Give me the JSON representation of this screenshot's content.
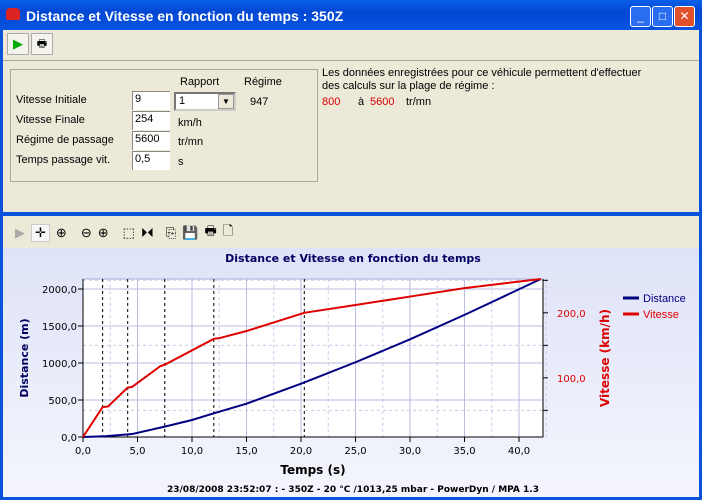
{
  "window": {
    "title": "Distance et Vitesse en fonction du temps : 350Z"
  },
  "toolbar": {
    "icons": [
      "play-icon",
      "print-icon"
    ]
  },
  "form": {
    "rapport_header": "Rapport",
    "regime_header": "Régime",
    "rows": [
      {
        "label": "Vitesse Initiale",
        "value": "9"
      },
      {
        "label": "Vitesse Finale",
        "value": "254",
        "unit": "km/h"
      },
      {
        "label": "Régime de passage",
        "value": "5600",
        "unit": "tr/mn"
      },
      {
        "label": "Temps passage vit.",
        "value": "0,5",
        "unit": "s"
      }
    ],
    "rapport_value": "1",
    "regime_value": "947"
  },
  "info": {
    "line1": "Les données enregistrées pour ce véhicule permettent d'effectuer",
    "line2": "des calculs sur la plage de régime :",
    "min": "800",
    "sep": "à",
    "max": "5600",
    "unit": "tr/mn",
    "accent": "#d40000"
  },
  "chart_toolbar": [
    "arrow-icon",
    "pan-icon",
    "zoom-area-icon",
    "zoom-out-icon",
    "zoom-in-icon",
    "select-rect-icon",
    "cursor-icon",
    "copy-icon",
    "save-icon",
    "print-icon",
    "print-preview-icon"
  ],
  "chart_data": {
    "type": "line",
    "title": "Distance et Vitesse en fonction du temps",
    "xlabel": "Temps (s)",
    "ylabel": "Distance (m)",
    "y2label": "Vitesse (km/h)",
    "xlim": [
      0,
      42.2
    ],
    "ylim": [
      0,
      2135
    ],
    "y2lim": [
      9,
      252
    ],
    "xticks": [
      "0,0",
      "5,0",
      "10,0",
      "15,0",
      "20,0",
      "25,0",
      "30,0",
      "35,0",
      "40,0"
    ],
    "yticks": [
      "0,0",
      "500,0",
      "1000,0",
      "1500,0",
      "2000,0"
    ],
    "y2ticks": [
      "100,0",
      "200,0"
    ],
    "gear_changes": [
      1.8,
      4.1,
      7.5,
      12.0,
      20.3
    ],
    "legend": "right",
    "series": [
      {
        "name": "Distance",
        "color": "#000080",
        "axis": "left",
        "x": [
          0,
          2,
          4.5,
          7.5,
          10,
          12,
          15,
          20,
          25,
          30,
          35,
          42
        ],
        "y": [
          0,
          10,
          40,
          140,
          230,
          320,
          450,
          720,
          1010,
          1320,
          1650,
          2135
        ]
      },
      {
        "name": "Vitesse",
        "color": "#e00000",
        "axis": "right",
        "x": [
          0,
          1.8,
          2.3,
          4.1,
          4.5,
          7.1,
          7.6,
          12,
          12.5,
          15,
          20.3,
          25,
          30,
          35,
          42
        ],
        "y": [
          9,
          55,
          56,
          85,
          86,
          118,
          121,
          160,
          161,
          172,
          200,
          212,
          225,
          238,
          252
        ]
      }
    ],
    "footer": "23/08/2008 23:52:07 :  - 350Z - 20 °C /1013,25 mbar - PowerDyn / MPA 1.3"
  }
}
